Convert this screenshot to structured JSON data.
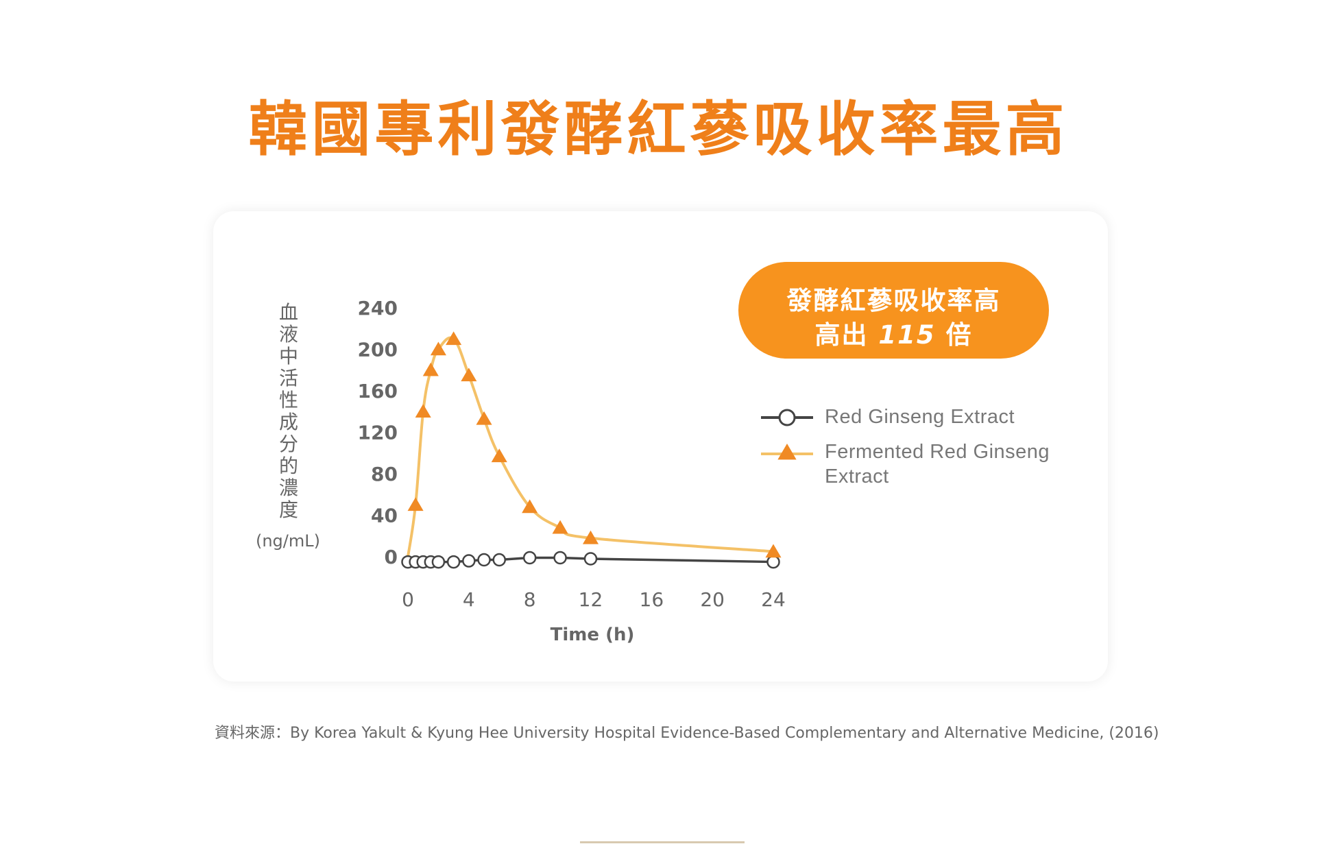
{
  "title": "韓國專利發酵紅蔘吸收率最高",
  "badge": {
    "line1": "發酵紅蔘吸收率高",
    "line2_prefix": "高出",
    "line2_number": "115",
    "line2_suffix": "倍"
  },
  "source": "資料來源：By Korea Yakult & Kyung Hee University Hospital Evidence-Based Complementary and Alternative Medicine, (2016)",
  "colors": {
    "accent": "#ef7f1a",
    "triangle": "#f08a24",
    "fermented_line": "#f4c167",
    "red_line": "#444444",
    "badge": "#f7931e"
  },
  "chart_data": {
    "type": "line",
    "ylabel_chars": [
      "血",
      "液",
      "中",
      "活",
      "性",
      "成",
      "分",
      "的",
      "濃",
      "度"
    ],
    "ylabel": "血液中活性成分的濃度",
    "yunit": "(ng/mL)",
    "xlabel": "Time (h)",
    "xlim": [
      0,
      24
    ],
    "ylim": [
      0,
      240
    ],
    "xticks": [
      0,
      4,
      8,
      12,
      16,
      20,
      24
    ],
    "yticks": [
      0,
      40,
      80,
      120,
      160,
      200,
      240
    ],
    "legend_position": "right",
    "series": [
      {
        "name": "Red Ginseng Extract",
        "marker": "circle",
        "x": [
          0,
          0.5,
          1,
          1.5,
          2,
          3,
          4,
          5,
          6,
          8,
          10,
          12,
          24
        ],
        "y": [
          -5,
          -5,
          -5,
          -5,
          -5,
          -5,
          -4,
          -3,
          -3,
          -1,
          -1,
          -2,
          -5
        ]
      },
      {
        "name": "Fermented Red Ginseng Extract",
        "marker": "triangle",
        "x": [
          0.5,
          1,
          1.5,
          2,
          3,
          4,
          5,
          6,
          8,
          10,
          12,
          24
        ],
        "y": [
          50,
          140,
          180,
          200,
          210,
          175,
          133,
          97,
          48,
          28,
          18,
          5
        ]
      }
    ]
  }
}
